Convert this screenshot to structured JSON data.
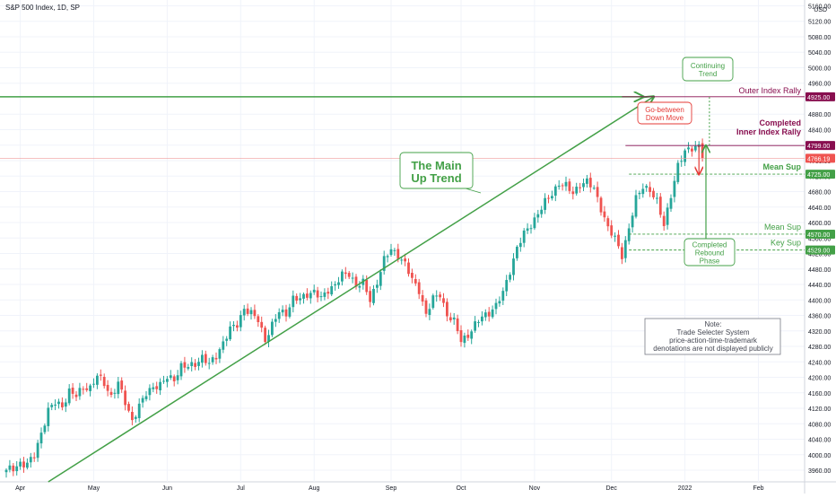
{
  "header": {
    "title": "S&P 500 Index, 1D, SP",
    "currency": "USD"
  },
  "chart_data": {
    "type": "candlestick",
    "yaxis": {
      "ylim": [
        3930,
        5175
      ],
      "ticks": [
        5160,
        5120,
        5080,
        5040,
        5000,
        4960,
        4880,
        4840,
        4800,
        4760,
        4720,
        4680,
        4640,
        4600,
        4560,
        4520,
        4480,
        4440,
        4400,
        4360,
        4320,
        4280,
        4240,
        4200,
        4160,
        4120,
        4080,
        4040,
        4000,
        3960
      ],
      "tick_labels": [
        "5160.00",
        "5120.00",
        "5080.00",
        "5040.00",
        "5000.00",
        "4960.00",
        "4880.00",
        "4840.00",
        "4800.00",
        "4760.00",
        "4720.00",
        "4680.00",
        "4640.00",
        "4600.00",
        "4560.00",
        "4520.00",
        "4480.00",
        "4440.00",
        "4400.00",
        "4360.00",
        "4320.00",
        "4280.00",
        "4240.00",
        "4200.00",
        "4160.00",
        "4120.00",
        "4080.00",
        "4040.00",
        "4000.00",
        "3960.00"
      ]
    },
    "xaxis": {
      "labels": [
        {
          "label": "Apr",
          "bar": 4
        },
        {
          "label": "May",
          "bar": 25
        },
        {
          "label": "Jun",
          "bar": 46
        },
        {
          "label": "Jul",
          "bar": 67
        },
        {
          "label": "Aug",
          "bar": 88
        },
        {
          "label": "Sep",
          "bar": 110
        },
        {
          "label": "Oct",
          "bar": 130
        },
        {
          "label": "Nov",
          "bar": 151
        },
        {
          "label": "Dec",
          "bar": 173
        },
        {
          "label": "2022",
          "bar": 194
        },
        {
          "label": "Feb",
          "bar": 215
        }
      ]
    },
    "price_anchors": [
      [
        0,
        3955
      ],
      [
        2,
        3968
      ],
      [
        4,
        3980
      ],
      [
        6,
        3970
      ],
      [
        8,
        4000
      ],
      [
        10,
        4060
      ],
      [
        12,
        4110
      ],
      [
        14,
        4135
      ],
      [
        16,
        4130
      ],
      [
        18,
        4160
      ],
      [
        20,
        4150
      ],
      [
        22,
        4180
      ],
      [
        24,
        4170
      ],
      [
        26,
        4200
      ],
      [
        28,
        4190
      ],
      [
        30,
        4150
      ],
      [
        32,
        4180
      ],
      [
        34,
        4140
      ],
      [
        36,
        4090
      ],
      [
        38,
        4120
      ],
      [
        40,
        4160
      ],
      [
        42,
        4180
      ],
      [
        44,
        4175
      ],
      [
        46,
        4200
      ],
      [
        48,
        4200
      ],
      [
        50,
        4225
      ],
      [
        52,
        4225
      ],
      [
        54,
        4240
      ],
      [
        56,
        4250
      ],
      [
        58,
        4230
      ],
      [
        60,
        4260
      ],
      [
        62,
        4290
      ],
      [
        64,
        4320
      ],
      [
        66,
        4340
      ],
      [
        68,
        4380
      ],
      [
        70,
        4360
      ],
      [
        72,
        4350
      ],
      [
        74,
        4300
      ],
      [
        76,
        4330
      ],
      [
        78,
        4370
      ],
      [
        80,
        4370
      ],
      [
        82,
        4400
      ],
      [
        84,
        4400
      ],
      [
        86,
        4420
      ],
      [
        88,
        4420
      ],
      [
        90,
        4400
      ],
      [
        92,
        4430
      ],
      [
        94,
        4440
      ],
      [
        96,
        4460
      ],
      [
        98,
        4470
      ],
      [
        100,
        4440
      ],
      [
        102,
        4440
      ],
      [
        104,
        4400
      ],
      [
        106,
        4450
      ],
      [
        108,
        4500
      ],
      [
        110,
        4530
      ],
      [
        112,
        4520
      ],
      [
        114,
        4490
      ],
      [
        116,
        4450
      ],
      [
        118,
        4430
      ],
      [
        120,
        4360
      ],
      [
        122,
        4400
      ],
      [
        124,
        4420
      ],
      [
        126,
        4360
      ],
      [
        128,
        4340
      ],
      [
        130,
        4300
      ],
      [
        132,
        4310
      ],
      [
        134,
        4330
      ],
      [
        136,
        4360
      ],
      [
        138,
        4370
      ],
      [
        140,
        4380
      ],
      [
        142,
        4420
      ],
      [
        144,
        4480
      ],
      [
        146,
        4530
      ],
      [
        148,
        4570
      ],
      [
        150,
        4600
      ],
      [
        152,
        4620
      ],
      [
        154,
        4650
      ],
      [
        156,
        4680
      ],
      [
        158,
        4700
      ],
      [
        160,
        4690
      ],
      [
        162,
        4680
      ],
      [
        164,
        4700
      ],
      [
        166,
        4700
      ],
      [
        168,
        4690
      ],
      [
        170,
        4640
      ],
      [
        172,
        4580
      ],
      [
        174,
        4560
      ],
      [
        176,
        4520
      ],
      [
        178,
        4580
      ],
      [
        180,
        4660
      ],
      [
        182,
        4700
      ],
      [
        184,
        4680
      ],
      [
        186,
        4650
      ],
      [
        188,
        4600
      ],
      [
        190,
        4670
      ],
      [
        192,
        4740
      ],
      [
        194,
        4790
      ],
      [
        196,
        4795
      ],
      [
        198,
        4790
      ],
      [
        199,
        4766
      ]
    ],
    "series_note": "Daily OHLC candlesticks; closing price values approximated from the chart, series ends at 4766.19",
    "last_price": 4766.19,
    "trend_lines": [
      {
        "name": "main-uptrend",
        "from": {
          "bar": 12,
          "price": 3930
        },
        "to": {
          "bar": 185,
          "price": 4925
        }
      },
      {
        "name": "outer-index-rally-arrow",
        "from": {
          "bar": -38,
          "price": 4925
        },
        "to": {
          "bar": 182,
          "price": 4925
        }
      }
    ],
    "levels": [
      {
        "label": "Outer Index Rally",
        "price": 4925.0,
        "tag": "4925.00",
        "color": "#880e4f"
      },
      {
        "label": "Completed Inner Index Rally",
        "price": 4799.0,
        "tag": "4799.00",
        "color": "#880e4f"
      },
      {
        "label": "Mean Sup",
        "price": 4725.0,
        "tag": "4725.00",
        "color": "#43a047"
      },
      {
        "label": "Mean Sup",
        "price": 4570.0,
        "tag": "4570.00",
        "color": "#43a047"
      },
      {
        "label": "Key Sup",
        "price": 4529.0,
        "tag": "4529.00",
        "color": "#43a047"
      }
    ],
    "callouts": [
      {
        "text": [
          "The Main",
          "Up Trend"
        ],
        "color": "#43a047"
      },
      {
        "text": [
          "Continuing",
          "Trend"
        ],
        "color": "#43a047"
      },
      {
        "text": [
          "Go-between",
          "Down Move"
        ],
        "color": "#e53935"
      },
      {
        "text": [
          "Completed",
          "Rebound",
          "Phase"
        ],
        "color": "#43a047"
      }
    ],
    "note": {
      "lines": [
        "Note:",
        "Trade Selecter System",
        "price-action-time-trademark",
        "denotations are not displayed publicly"
      ]
    },
    "colors": {
      "up": "#26a69a",
      "down": "#ef5350",
      "axis_text": "#131722",
      "grid": "#f0f3fa"
    }
  }
}
